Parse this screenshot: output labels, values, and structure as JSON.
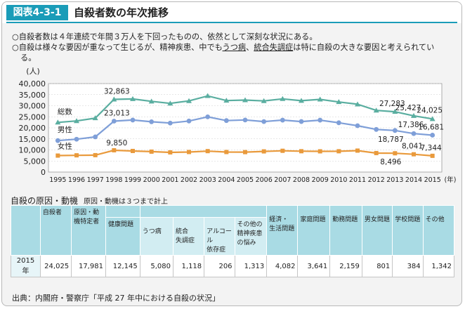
{
  "figure": {
    "number": "図表4-3-1",
    "title": "自殺者数の年次推移",
    "notes": [
      [
        "○自殺者数は４年連続で年間３万人を下回ったものの、依然として深刻な状況にある。"
      ],
      [
        "○自殺は様々な要因が重なって生じるが、精神疾患、中でも",
        "うつ病",
        "、",
        "統合失調症",
        "は特に自殺の大きな要因と考えられてい"
      ],
      [
        "る。"
      ]
    ]
  },
  "chart_data": {
    "type": "line",
    "title": "",
    "ylabel": "(人)",
    "xlabel": "(年)",
    "ylim": [
      0,
      40000
    ],
    "yticks": [
      0,
      5000,
      10000,
      15000,
      20000,
      25000,
      30000,
      35000,
      40000
    ],
    "ytick_labels": [
      "0",
      "5,000",
      "10,000",
      "15,000",
      "20,000",
      "25,000",
      "30,000",
      "35,000",
      "40,000"
    ],
    "grid": true,
    "x": [
      "1995",
      "1996",
      "1997",
      "1998",
      "1999",
      "2000",
      "2001",
      "2002",
      "2003",
      "2004",
      "2005",
      "2006",
      "2007",
      "2008",
      "2009",
      "2010",
      "2011",
      "2012",
      "2013",
      "2014",
      "2015"
    ],
    "series": [
      {
        "name": "総数",
        "color": "#5aaea0",
        "values": [
          22445,
          23104,
          24391,
          32863,
          33048,
          31957,
          31042,
          32143,
          34427,
          32325,
          32552,
          32155,
          33093,
          32249,
          32845,
          31690,
          30651,
          27858,
          27283,
          25427,
          24025
        ]
      },
      {
        "name": "男性",
        "color": "#7f9fd8",
        "values": [
          14231,
          14853,
          15901,
          23013,
          23512,
          22727,
          22144,
          23080,
          24963,
          23272,
          23540,
          22813,
          23478,
          22831,
          23472,
          22283,
          20955,
          19273,
          18787,
          17386,
          16681
        ]
      },
      {
        "name": "女性",
        "color": "#e99a3c",
        "values": [
          7445,
          7569,
          7644,
          9850,
          9534,
          9230,
          8898,
          9063,
          9464,
          9053,
          9012,
          9342,
          9615,
          9418,
          9373,
          9407,
          9696,
          8585,
          8496,
          8041,
          7344
        ]
      }
    ],
    "data_labels": [
      "32,863",
      "23,013",
      "9,850",
      "27,283",
      "25,427",
      "24,025",
      "17,386",
      "16,681",
      "18,787",
      "8,041",
      "7,344",
      "8,496"
    ]
  },
  "table": {
    "title": "自殺の原因・動機",
    "subtitle": "原因・動機は３つまで計上",
    "headers": {
      "total": "自殺者",
      "identified": [
        "原因・動",
        "機特定者"
      ],
      "health": "健康問題",
      "depression": "うつ病",
      "schizo": [
        "統合",
        "失調症"
      ],
      "alcohol": [
        "アルコール",
        "依存症"
      ],
      "other_mental": [
        "その他の",
        "精神疾患",
        "の悩み"
      ],
      "economic": [
        "経済・",
        "生活問題"
      ],
      "family": "家庭問題",
      "work": "勤務問題",
      "romance": "男女問題",
      "school": "学校問題",
      "other": "その他"
    },
    "row": {
      "year": "2015年",
      "total": "24,025",
      "identified": "17,981",
      "health": "12,145",
      "depression": "5,080",
      "schizo": "1,118",
      "alcohol": "206",
      "other_mental": "1,313",
      "economic": "4,082",
      "family": "3,641",
      "work": "2,159",
      "romance": "801",
      "school": "384",
      "other": "1,342"
    }
  },
  "source": "出典：内閣府・警察庁「平成 27 年中における自殺の状況」"
}
